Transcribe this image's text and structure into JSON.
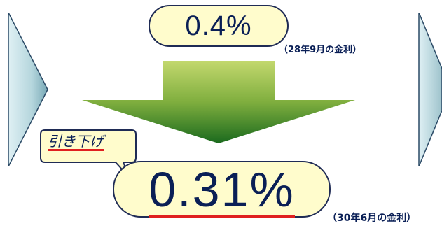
{
  "old_rate": {
    "value": "0.4%",
    "caption": "（28年9月の金利）"
  },
  "new_rate": {
    "value": "0.31%",
    "caption": "（30年6月の金利）"
  },
  "callout": {
    "label": "引き下げ"
  },
  "colors": {
    "pill_fill": "#fffccc",
    "pill_border": "#1f2b55",
    "text": "#0a1f56",
    "underline": "#e02020",
    "arrow_top": "#c3d86e",
    "arrow_bottom": "#1b6a1e",
    "chevron_light": "#dff0f4",
    "chevron_dark": "#78a9b6"
  }
}
